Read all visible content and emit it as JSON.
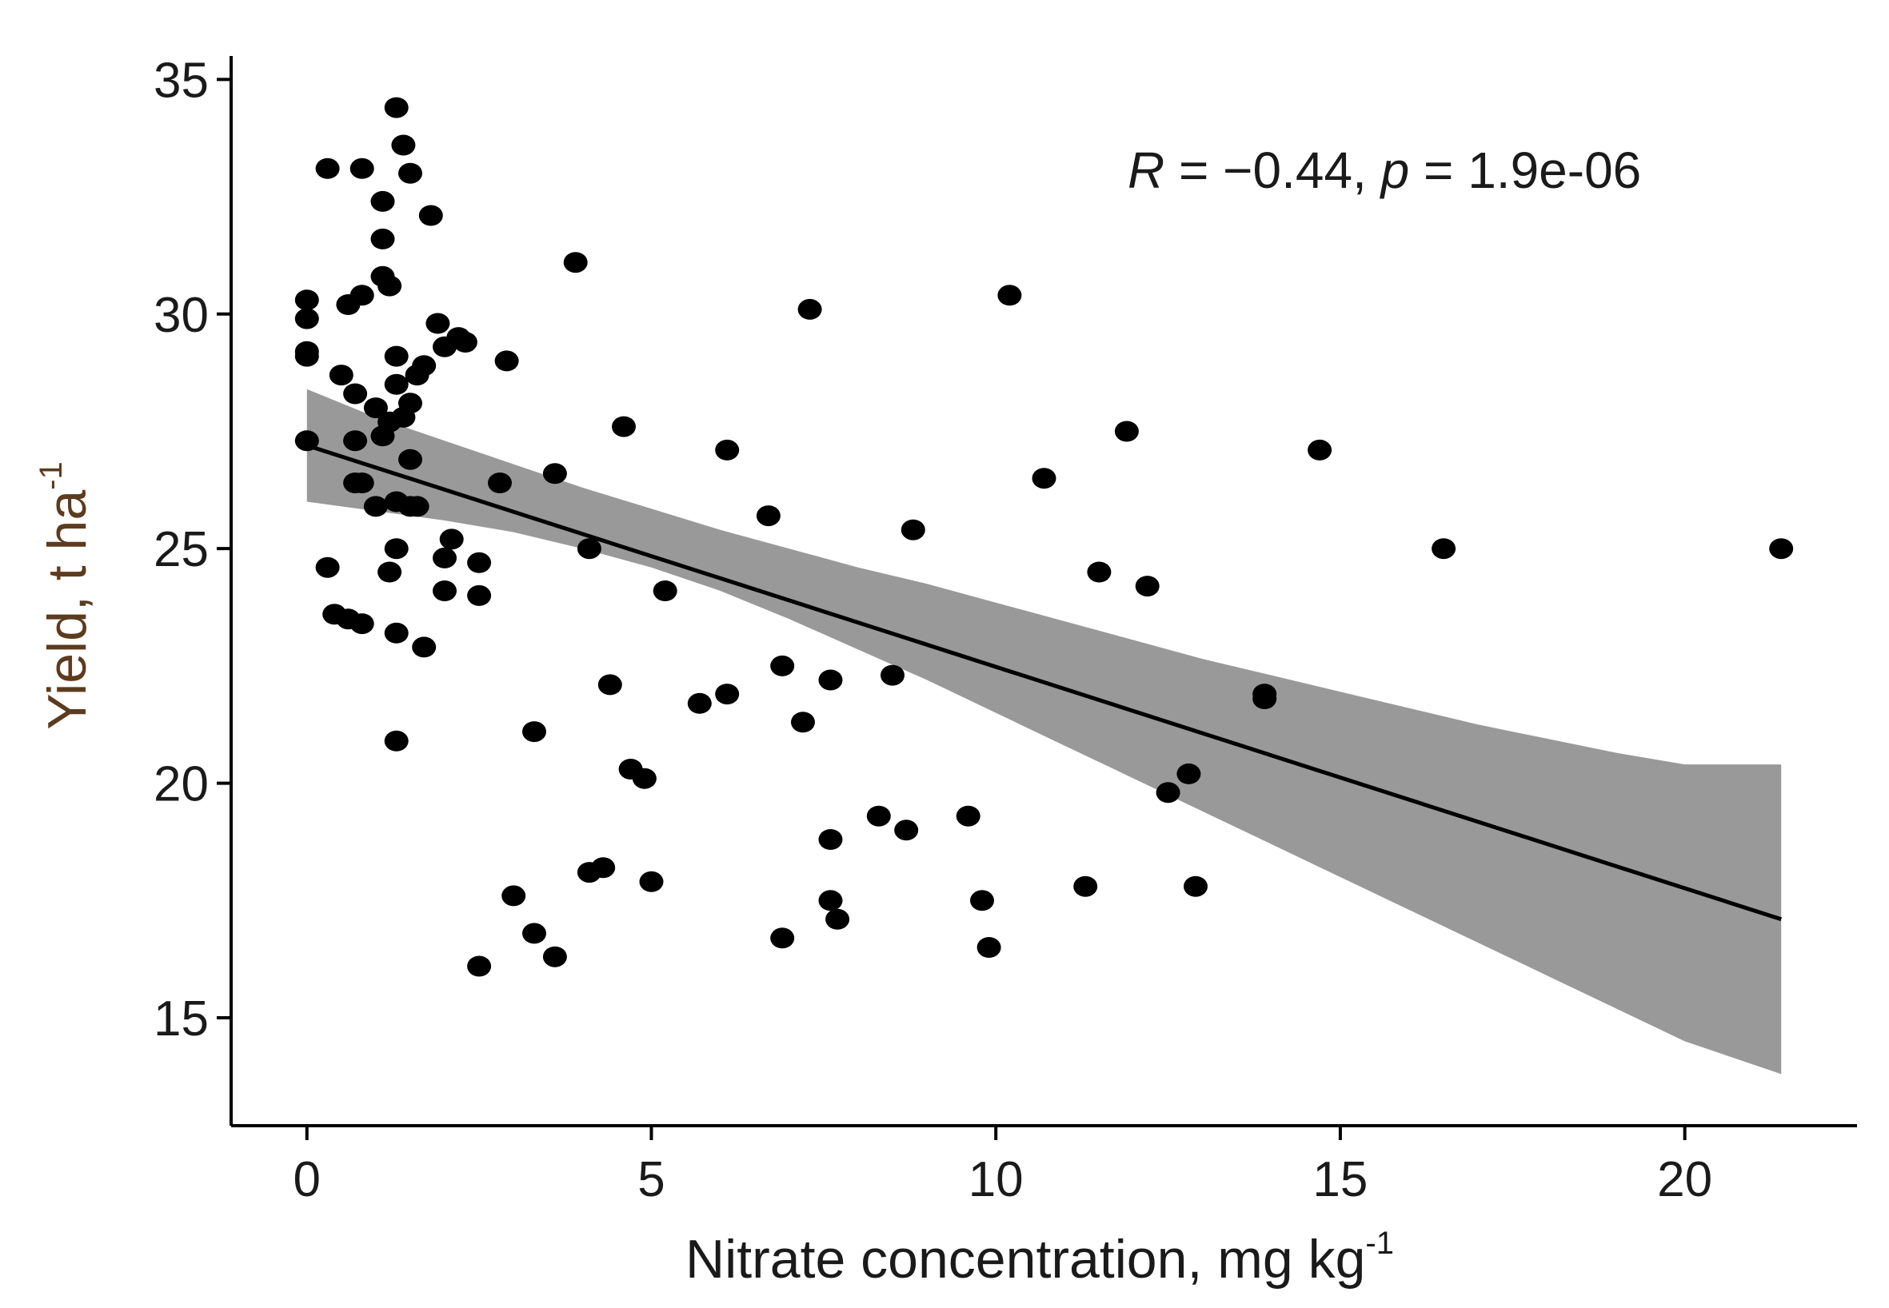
{
  "chart_data": {
    "type": "scatter",
    "title": "",
    "xlabel": "Nitrate concentration, mg kg",
    "xlabel_sup": "-1",
    "ylabel": "Yield, t ha",
    "ylabel_sup": "-1",
    "xlim": [
      -1.1,
      22.5
    ],
    "ylim": [
      12.7,
      35.5
    ],
    "xticks": [
      0,
      5,
      10,
      15,
      20
    ],
    "yticks": [
      15,
      20,
      25,
      30,
      35
    ],
    "grid": false,
    "annotation": {
      "r_label": "R",
      "r_text": " = −0.44, ",
      "p_label": "p",
      "p_text": " = 1.9e-06",
      "position": "top-right"
    },
    "colors": {
      "points": "#000000",
      "fit_line": "#000000",
      "confidence_band": "#999999",
      "ylabel": "#5c3b1e"
    },
    "regression": {
      "x": [
        0,
        21.4
      ],
      "y": [
        27.2,
        17.1
      ]
    },
    "confidence_band": {
      "x": [
        0,
        1,
        2,
        3,
        4,
        5,
        6,
        7,
        8,
        9,
        10,
        11,
        12,
        13,
        14,
        15,
        16,
        17,
        18,
        19,
        20,
        21.4
      ],
      "lower": [
        26.0,
        25.8,
        25.6,
        25.35,
        25.0,
        24.6,
        24.1,
        23.5,
        22.85,
        22.2,
        21.5,
        20.8,
        20.1,
        19.4,
        18.7,
        18.0,
        17.3,
        16.6,
        15.9,
        15.2,
        14.5,
        13.8
      ],
      "upper": [
        28.4,
        27.8,
        27.3,
        26.8,
        26.3,
        25.85,
        25.4,
        25.0,
        24.6,
        24.25,
        23.85,
        23.45,
        23.05,
        22.65,
        22.3,
        21.95,
        21.6,
        21.25,
        20.95,
        20.65,
        20.4,
        20.4
      ]
    },
    "series": [
      {
        "name": "observations",
        "points": [
          [
            1.3,
            34.4
          ],
          [
            1.4,
            33.6
          ],
          [
            1.5,
            33.0
          ],
          [
            0.3,
            33.1
          ],
          [
            0.8,
            33.1
          ],
          [
            1.1,
            32.4
          ],
          [
            1.8,
            32.1
          ],
          [
            1.1,
            31.6
          ],
          [
            1.1,
            30.8
          ],
          [
            1.2,
            30.6
          ],
          [
            3.9,
            31.1
          ],
          [
            10.2,
            30.4
          ],
          [
            7.3,
            30.1
          ],
          [
            0.0,
            30.3
          ],
          [
            0.0,
            29.9
          ],
          [
            0.6,
            30.2
          ],
          [
            0.8,
            30.4
          ],
          [
            1.9,
            29.8
          ],
          [
            2.0,
            29.3
          ],
          [
            2.2,
            29.5
          ],
          [
            2.3,
            29.4
          ],
          [
            0.0,
            29.2
          ],
          [
            0.0,
            29.1
          ],
          [
            1.3,
            29.1
          ],
          [
            1.7,
            28.9
          ],
          [
            1.6,
            28.7
          ],
          [
            2.9,
            29.0
          ],
          [
            0.5,
            28.7
          ],
          [
            0.7,
            28.3
          ],
          [
            1.3,
            28.5
          ],
          [
            1.5,
            28.1
          ],
          [
            1.0,
            28.0
          ],
          [
            1.2,
            27.7
          ],
          [
            1.4,
            27.8
          ],
          [
            0.0,
            27.3
          ],
          [
            0.7,
            27.3
          ],
          [
            1.1,
            27.4
          ],
          [
            1.5,
            26.9
          ],
          [
            4.6,
            27.6
          ],
          [
            6.1,
            27.1
          ],
          [
            11.9,
            27.5
          ],
          [
            14.7,
            27.1
          ],
          [
            0.7,
            26.4
          ],
          [
            0.8,
            26.4
          ],
          [
            1.0,
            25.9
          ],
          [
            1.3,
            26.0
          ],
          [
            1.5,
            25.9
          ],
          [
            1.6,
            25.9
          ],
          [
            2.8,
            26.4
          ],
          [
            3.6,
            26.6
          ],
          [
            10.7,
            26.5
          ],
          [
            4.1,
            25.0
          ],
          [
            6.7,
            25.7
          ],
          [
            8.8,
            25.4
          ],
          [
            16.5,
            25.0
          ],
          [
            21.4,
            25.0
          ],
          [
            2.1,
            25.2
          ],
          [
            2.0,
            24.8
          ],
          [
            1.3,
            25.0
          ],
          [
            2.5,
            24.7
          ],
          [
            0.3,
            24.6
          ],
          [
            1.2,
            24.5
          ],
          [
            11.5,
            24.5
          ],
          [
            12.2,
            24.2
          ],
          [
            2.0,
            24.1
          ],
          [
            2.5,
            24.0
          ],
          [
            5.2,
            24.1
          ],
          [
            0.4,
            23.6
          ],
          [
            0.6,
            23.5
          ],
          [
            0.8,
            23.4
          ],
          [
            1.3,
            23.2
          ],
          [
            1.7,
            22.9
          ],
          [
            6.9,
            22.5
          ],
          [
            8.5,
            22.3
          ],
          [
            7.6,
            22.2
          ],
          [
            4.4,
            22.1
          ],
          [
            6.1,
            21.9
          ],
          [
            5.7,
            21.7
          ],
          [
            13.9,
            21.8
          ],
          [
            13.9,
            21.9
          ],
          [
            7.2,
            21.3
          ],
          [
            3.3,
            21.1
          ],
          [
            1.3,
            20.9
          ],
          [
            4.7,
            20.3
          ],
          [
            4.9,
            20.1
          ],
          [
            12.8,
            20.2
          ],
          [
            12.5,
            19.8
          ],
          [
            8.3,
            19.3
          ],
          [
            9.6,
            19.3
          ],
          [
            8.7,
            19.0
          ],
          [
            7.6,
            18.8
          ],
          [
            4.1,
            18.1
          ],
          [
            4.3,
            18.2
          ],
          [
            5.0,
            17.9
          ],
          [
            11.3,
            17.8
          ],
          [
            12.9,
            17.8
          ],
          [
            3.0,
            17.6
          ],
          [
            7.6,
            17.5
          ],
          [
            9.8,
            17.5
          ],
          [
            7.7,
            17.1
          ],
          [
            3.3,
            16.8
          ],
          [
            6.9,
            16.7
          ],
          [
            9.9,
            16.5
          ],
          [
            3.6,
            16.3
          ],
          [
            2.5,
            16.1
          ]
        ]
      }
    ]
  }
}
